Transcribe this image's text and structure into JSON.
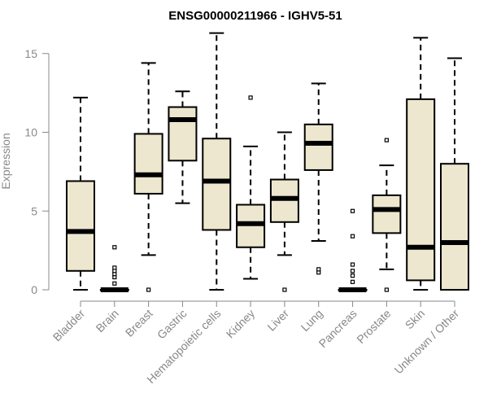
{
  "chart_data": {
    "type": "box",
    "title": "ENSG00000211966 - IGHV5-51",
    "xlabel": "",
    "ylabel": "Expression",
    "ylim": [
      0,
      16.5
    ],
    "yticks": [
      0,
      5,
      10,
      15
    ],
    "grid": false,
    "colors": {
      "box_fill": "#ede7cf",
      "box_stroke": "#000000",
      "median": "#000000",
      "axis": "#888888"
    },
    "categories": [
      "Bladder",
      "Brain",
      "Breast",
      "Gastric",
      "Hematopoietic cells",
      "Kidney",
      "Liver",
      "Lung",
      "Pancreas",
      "Prostate",
      "Skin",
      "Unknown / Other"
    ],
    "boxes": [
      {
        "min": 0.0,
        "q1": 1.2,
        "median": 3.7,
        "q3": 6.9,
        "max": 12.2,
        "outliers": []
      },
      {
        "min": 0.0,
        "q1": 0.0,
        "median": 0.0,
        "q3": 0.0,
        "max": 0.0,
        "outliers": [
          0.4,
          0.8,
          1.0,
          1.2,
          1.4,
          2.7
        ]
      },
      {
        "min": 2.2,
        "q1": 6.1,
        "median": 7.3,
        "q3": 9.9,
        "max": 14.4,
        "outliers": [
          0.0
        ]
      },
      {
        "min": 5.5,
        "q1": 8.2,
        "median": 10.8,
        "q3": 11.6,
        "max": 12.6,
        "outliers": []
      },
      {
        "min": 0.0,
        "q1": 3.8,
        "median": 6.9,
        "q3": 9.6,
        "max": 16.3,
        "outliers": []
      },
      {
        "min": 0.7,
        "q1": 2.7,
        "median": 4.2,
        "q3": 5.4,
        "max": 9.1,
        "outliers": [
          12.2
        ]
      },
      {
        "min": 2.2,
        "q1": 4.3,
        "median": 5.8,
        "q3": 7.0,
        "max": 10.0,
        "outliers": [
          0.0
        ]
      },
      {
        "min": 3.1,
        "q1": 7.6,
        "median": 9.3,
        "q3": 10.5,
        "max": 13.1,
        "outliers": [
          1.1,
          1.3
        ]
      },
      {
        "min": 0.0,
        "q1": 0.0,
        "median": 0.0,
        "q3": 0.0,
        "max": 0.0,
        "outliers": [
          0.5,
          0.9,
          1.2,
          1.6,
          3.4,
          5.0
        ]
      },
      {
        "min": 1.3,
        "q1": 3.6,
        "median": 5.1,
        "q3": 6.0,
        "max": 7.9,
        "outliers": [
          0.0,
          9.5
        ]
      },
      {
        "min": 0.0,
        "q1": 0.6,
        "median": 2.7,
        "q3": 12.1,
        "max": 16.0,
        "outliers": []
      },
      {
        "min": 0.0,
        "q1": 0.0,
        "median": 3.0,
        "q3": 8.0,
        "max": 14.7,
        "outliers": []
      }
    ]
  }
}
